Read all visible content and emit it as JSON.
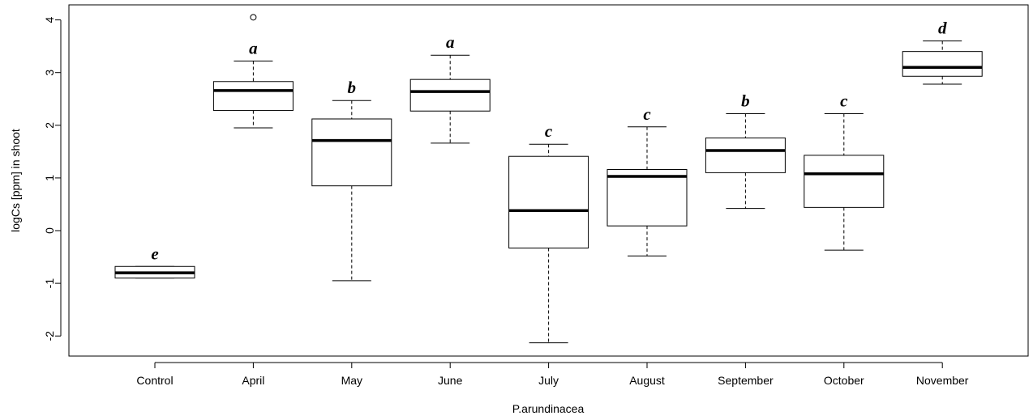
{
  "chart_data": {
    "type": "box",
    "xlabel": "P.arundinacea",
    "ylabel": "logCs [ppm] in shoot",
    "ylim": [
      -2.35,
      4.3
    ],
    "yticks": [
      "-2",
      "-1",
      "0",
      "1",
      "2",
      "3",
      "4"
    ],
    "grid": false,
    "categories": [
      "Control",
      "April",
      "May",
      "June",
      "July",
      "August",
      "September",
      "October",
      "November"
    ],
    "boxes": [
      {
        "category": "Control",
        "whisker_low": -0.9,
        "q1": -0.9,
        "median": -0.8,
        "q3": -0.68,
        "whisker_high": -0.68,
        "outliers": [],
        "group": "e"
      },
      {
        "category": "April",
        "whisker_low": 1.95,
        "q1": 2.28,
        "median": 2.66,
        "q3": 2.83,
        "whisker_high": 3.22,
        "outliers": [
          4.05
        ],
        "group": "a"
      },
      {
        "category": "May",
        "whisker_low": -0.95,
        "q1": 0.85,
        "median": 1.71,
        "q3": 2.12,
        "whisker_high": 2.47,
        "outliers": [],
        "group": "b"
      },
      {
        "category": "June",
        "whisker_low": 1.66,
        "q1": 2.27,
        "median": 2.64,
        "q3": 2.87,
        "whisker_high": 3.33,
        "outliers": [],
        "group": "a"
      },
      {
        "category": "July",
        "whisker_low": -2.13,
        "q1": -0.33,
        "median": 0.38,
        "q3": 1.41,
        "whisker_high": 1.64,
        "outliers": [],
        "group": "c"
      },
      {
        "category": "August",
        "whisker_low": -0.48,
        "q1": 0.09,
        "median": 1.03,
        "q3": 1.16,
        "whisker_high": 1.97,
        "outliers": [],
        "group": "c"
      },
      {
        "category": "September",
        "whisker_low": 0.42,
        "q1": 1.1,
        "median": 1.52,
        "q3": 1.76,
        "whisker_high": 2.22,
        "outliers": [],
        "group": "b"
      },
      {
        "category": "October",
        "whisker_low": -0.37,
        "q1": 0.44,
        "median": 1.08,
        "q3": 1.43,
        "whisker_high": 2.22,
        "outliers": [],
        "group": "c"
      },
      {
        "category": "November",
        "whisker_low": 2.78,
        "q1": 2.93,
        "median": 3.1,
        "q3": 3.4,
        "whisker_high": 3.6,
        "outliers": [],
        "group": "d"
      }
    ]
  }
}
